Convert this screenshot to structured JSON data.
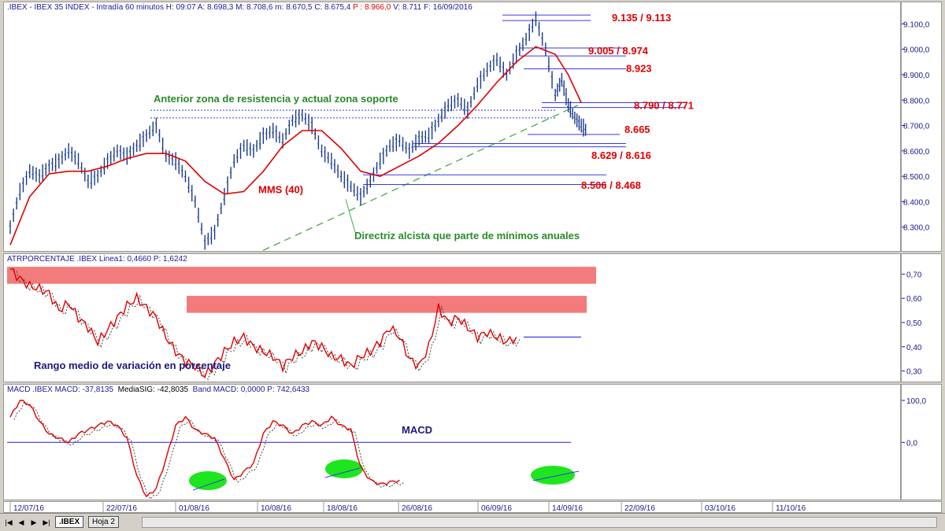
{
  "header": {
    "main": ".IBEX - IBEX 35 INDEX - Intradía 60 minutos  H: 09:07  A: 8.698,3  M: 8.708,6  m: 8.670,5  C: 8.675,4",
    "main_p": "P : 8.966,0",
    "main_tail": "V: 8.711  F: 16/09/2016",
    "atr": "ATRPORCENTAJE .IBEX Linea1: 0,4660  P: 1,6242",
    "macd_a": "MACD .IBEX MACD: -37,8135",
    "macd_b": "MediaSIG: -42,8035",
    "macd_c": "Band  MACD: 0,0000  P: 742,6433"
  },
  "tabs": {
    "sheet1": ".IBEX",
    "sheet2": "Hoja 2"
  },
  "nav_icons": [
    "first-icon",
    "prev-icon",
    "next-icon",
    "last-icon"
  ],
  "colors": {
    "price": "#1a3a8a",
    "mms": "#e00000",
    "atr": "#e00000",
    "macd": "#e00000",
    "signal": "#333333",
    "zone": "#f26d6d",
    "green": "#1ee61e",
    "trend": "#4aa84a",
    "level": "#3a3ae0",
    "axis_text": "#1a1a8a"
  },
  "chart_data": [
    {
      "type": "candlestick",
      "title": ".IBEX - IBEX 35 INDEX - Intradía 60 minutos",
      "ylim": [
        8200,
        9160
      ],
      "yticks": [
        8300,
        8400,
        8500,
        8600,
        8700,
        8800,
        8900,
        9000,
        9100
      ],
      "ytick_labels": [
        "8.300,0",
        "8.400,0",
        "8.500,0",
        "8.600,0",
        "8.700,0",
        "8.800,0",
        "8.900,0",
        "9.000,0",
        "9.100,0"
      ],
      "x_dates": [
        "12/07/16",
        "22/07/16",
        "01/08/16",
        "10/08/16",
        "18/08/16",
        "26/08/16",
        "06/09/16",
        "14/09/16",
        "22/09/16",
        "03/10/16",
        "11/10/16"
      ],
      "price_path": [
        [
          0,
          8300
        ],
        [
          3,
          8440
        ],
        [
          6,
          8520
        ],
        [
          9,
          8500
        ],
        [
          12,
          8540
        ],
        [
          15,
          8560
        ],
        [
          18,
          8600
        ],
        [
          21,
          8560
        ],
        [
          24,
          8480
        ],
        [
          27,
          8500
        ],
        [
          30,
          8560
        ],
        [
          33,
          8600
        ],
        [
          36,
          8580
        ],
        [
          39,
          8620
        ],
        [
          42,
          8660
        ],
        [
          45,
          8700
        ],
        [
          48,
          8580
        ],
        [
          51,
          8560
        ],
        [
          54,
          8500
        ],
        [
          57,
          8400
        ],
        [
          60,
          8240
        ],
        [
          63,
          8280
        ],
        [
          66,
          8420
        ],
        [
          69,
          8560
        ],
        [
          72,
          8620
        ],
        [
          75,
          8600
        ],
        [
          78,
          8660
        ],
        [
          81,
          8680
        ],
        [
          84,
          8640
        ],
        [
          87,
          8720
        ],
        [
          90,
          8740
        ],
        [
          93,
          8700
        ],
        [
          96,
          8600
        ],
        [
          99,
          8560
        ],
        [
          102,
          8500
        ],
        [
          105,
          8460
        ],
        [
          108,
          8420
        ],
        [
          111,
          8480
        ],
        [
          114,
          8560
        ],
        [
          117,
          8620
        ],
        [
          120,
          8640
        ],
        [
          123,
          8600
        ],
        [
          126,
          8650
        ],
        [
          129,
          8660
        ],
        [
          132,
          8720
        ],
        [
          135,
          8780
        ],
        [
          138,
          8800
        ],
        [
          141,
          8760
        ],
        [
          144,
          8860
        ],
        [
          147,
          8920
        ],
        [
          150,
          8960
        ],
        [
          153,
          8900
        ],
        [
          156,
          8980
        ],
        [
          159,
          9040
        ],
        [
          162,
          9120
        ],
        [
          165,
          9000
        ],
        [
          168,
          8820
        ],
        [
          170,
          8880
        ],
        [
          172,
          8780
        ],
        [
          174,
          8730
        ],
        [
          176,
          8700
        ],
        [
          178,
          8675
        ]
      ],
      "mms_label": "MMS (40)",
      "mms": [
        [
          0,
          8230
        ],
        [
          6,
          8420
        ],
        [
          12,
          8510
        ],
        [
          18,
          8520
        ],
        [
          24,
          8520
        ],
        [
          30,
          8540
        ],
        [
          36,
          8570
        ],
        [
          42,
          8590
        ],
        [
          48,
          8590
        ],
        [
          54,
          8560
        ],
        [
          60,
          8480
        ],
        [
          66,
          8430
        ],
        [
          72,
          8440
        ],
        [
          78,
          8520
        ],
        [
          84,
          8620
        ],
        [
          90,
          8680
        ],
        [
          96,
          8680
        ],
        [
          102,
          8610
        ],
        [
          108,
          8520
        ],
        [
          114,
          8500
        ],
        [
          120,
          8540
        ],
        [
          126,
          8580
        ],
        [
          132,
          8630
        ],
        [
          138,
          8700
        ],
        [
          144,
          8780
        ],
        [
          150,
          8870
        ],
        [
          156,
          8950
        ],
        [
          162,
          9010
        ],
        [
          168,
          8980
        ],
        [
          172,
          8900
        ],
        [
          176,
          8790
        ]
      ],
      "levels": [
        {
          "label": "9.135 / 9.113",
          "values": [
            9135,
            9113
          ]
        },
        {
          "label": "9.005 / 8.974",
          "values": [
            9005,
            8974
          ]
        },
        {
          "label": "8.923",
          "values": [
            8923
          ]
        },
        {
          "label": "8.790 / 8.771",
          "values": [
            8790,
            8771
          ]
        },
        {
          "label": "8.665",
          "values": [
            8665
          ]
        },
        {
          "label": "8.629 / 8.616",
          "values": [
            8629,
            8616
          ]
        },
        {
          "label": "8.506 / 8.468",
          "values": [
            8506,
            8468
          ]
        }
      ],
      "support_zone_label": "Anterior zona de resistencia y actual zona soporte",
      "support_zone": [
        8730,
        8760
      ],
      "trendline_label": "Directriz alcista que parte de mínimos anuales",
      "trendline": [
        [
          68,
          8150
        ],
        [
          175,
          8780
        ]
      ]
    },
    {
      "type": "line",
      "title": "ATRPORCENTAJE .IBEX",
      "ylim": [
        0.25,
        0.75
      ],
      "yticks": [
        0.3,
        0.4,
        0.5,
        0.6,
        0.7
      ],
      "ytick_labels": [
        "0,30",
        "0,40",
        "0,50",
        "0,60",
        "0,70"
      ],
      "annotation": "Rango medio de variación en porcentaje",
      "zones": [
        [
          0.66,
          0.73
        ],
        [
          0.54,
          0.61
        ]
      ],
      "level": 0.44,
      "series": [
        [
          0,
          0.72
        ],
        [
          3,
          0.68
        ],
        [
          6,
          0.65
        ],
        [
          9,
          0.64
        ],
        [
          12,
          0.62
        ],
        [
          15,
          0.55
        ],
        [
          18,
          0.58
        ],
        [
          21,
          0.52
        ],
        [
          24,
          0.48
        ],
        [
          27,
          0.42
        ],
        [
          30,
          0.47
        ],
        [
          33,
          0.52
        ],
        [
          36,
          0.57
        ],
        [
          39,
          0.6
        ],
        [
          42,
          0.56
        ],
        [
          45,
          0.52
        ],
        [
          48,
          0.44
        ],
        [
          51,
          0.38
        ],
        [
          54,
          0.34
        ],
        [
          57,
          0.32
        ],
        [
          60,
          0.28
        ],
        [
          63,
          0.33
        ],
        [
          66,
          0.38
        ],
        [
          69,
          0.42
        ],
        [
          72,
          0.44
        ],
        [
          75,
          0.4
        ],
        [
          78,
          0.38
        ],
        [
          81,
          0.36
        ],
        [
          84,
          0.32
        ],
        [
          87,
          0.36
        ],
        [
          90,
          0.38
        ],
        [
          93,
          0.42
        ],
        [
          96,
          0.4
        ],
        [
          99,
          0.36
        ],
        [
          102,
          0.35
        ],
        [
          105,
          0.32
        ],
        [
          108,
          0.36
        ],
        [
          111,
          0.38
        ],
        [
          114,
          0.42
        ],
        [
          117,
          0.48
        ],
        [
          120,
          0.44
        ],
        [
          123,
          0.35
        ],
        [
          126,
          0.32
        ],
        [
          129,
          0.4
        ],
        [
          132,
          0.56
        ],
        [
          135,
          0.5
        ],
        [
          138,
          0.52
        ],
        [
          141,
          0.48
        ],
        [
          144,
          0.44
        ],
        [
          147,
          0.46
        ],
        [
          150,
          0.44
        ],
        [
          153,
          0.42
        ],
        [
          156,
          0.44
        ]
      ]
    },
    {
      "type": "line",
      "title": "MACD .IBEX",
      "ylim": [
        -140,
        115
      ],
      "yticks": [
        0,
        100
      ],
      "ytick_labels": [
        "0,0",
        "100,0"
      ],
      "annotation": "MACD",
      "zero_line": 0,
      "series": [
        [
          0,
          60
        ],
        [
          3,
          100
        ],
        [
          6,
          90
        ],
        [
          9,
          50
        ],
        [
          12,
          20
        ],
        [
          15,
          10
        ],
        [
          18,
          0
        ],
        [
          21,
          20
        ],
        [
          24,
          30
        ],
        [
          27,
          40
        ],
        [
          30,
          50
        ],
        [
          33,
          40
        ],
        [
          36,
          10
        ],
        [
          39,
          -80
        ],
        [
          42,
          -130
        ],
        [
          45,
          -110
        ],
        [
          48,
          -40
        ],
        [
          51,
          40
        ],
        [
          54,
          60
        ],
        [
          57,
          30
        ],
        [
          60,
          20
        ],
        [
          63,
          10
        ],
        [
          66,
          -40
        ],
        [
          69,
          -90
        ],
        [
          72,
          -70
        ],
        [
          75,
          -50
        ],
        [
          78,
          20
        ],
        [
          81,
          50
        ],
        [
          84,
          40
        ],
        [
          87,
          20
        ],
        [
          90,
          40
        ],
        [
          93,
          50
        ],
        [
          96,
          40
        ],
        [
          99,
          60
        ],
        [
          102,
          40
        ],
        [
          105,
          30
        ],
        [
          108,
          -60
        ],
        [
          111,
          -90
        ],
        [
          114,
          -100
        ],
        [
          117,
          -95
        ],
        [
          120,
          -90
        ]
      ],
      "green_marks": 3
    }
  ]
}
